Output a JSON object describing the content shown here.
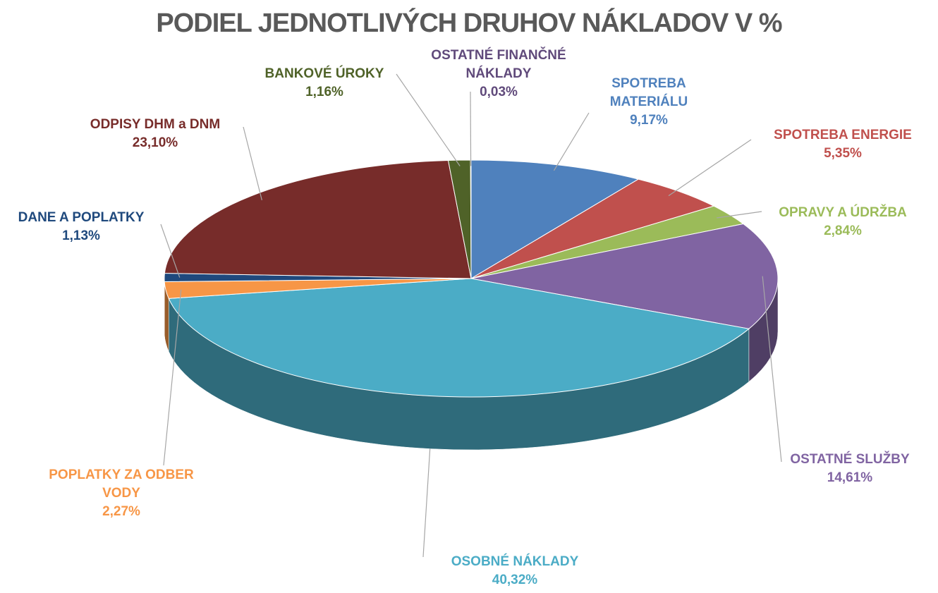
{
  "chart_data": {
    "type": "pie",
    "title": "PODIEL JEDNOTLIVÝCH DRUHOV NÁKLADOV V %",
    "categories": [
      "SPOTREBA MATERIÁLU",
      "SPOTREBA ENERGIE",
      "OPRAVY A ÚDRŽBA",
      "OSTATNÉ SLUŽBY",
      "OSOBNÉ NÁKLADY",
      "POPLATKY ZA ODBER VODY",
      "DANE A POPLATKY",
      "ODPISY DHM a DNM",
      "BANKOVÉ ÚROKY",
      "OSTATNÉ FINANČNÉ NÁKLADY"
    ],
    "values": [
      9.17,
      5.35,
      2.84,
      14.61,
      40.32,
      2.27,
      1.13,
      23.1,
      1.16,
      0.03
    ],
    "value_labels": [
      "9,17%",
      "5,35%",
      "2,84%",
      "14,61%",
      "40,32%",
      "2,27%",
      "1,13%",
      "23,10%",
      "1,16%",
      "0,03%"
    ],
    "colors": [
      "#4f81bd",
      "#c0504d",
      "#9bbb59",
      "#8064a2",
      "#4bacc6",
      "#f79646",
      "#1f497d",
      "#772c2a",
      "#4f6228",
      "#604a7b"
    ]
  }
}
